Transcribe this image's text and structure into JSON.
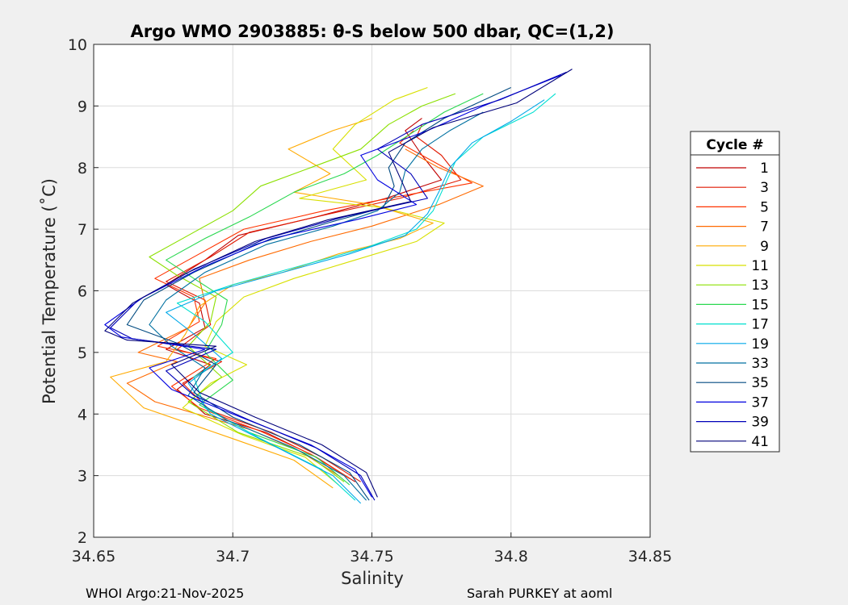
{
  "figure": {
    "background": "#f0f0f0",
    "footer_left": "WHOI Argo:21-Nov-2025",
    "footer_right": "Sarah PURKEY at aoml"
  },
  "chart_data": {
    "type": "line",
    "title": "Argo WMO 2903885: θ-S below 500 dbar,  QC=(1,2)",
    "xlabel": "Salinity",
    "ylabel": "Potential Temperature (˚C)",
    "xlim": [
      34.65,
      34.85
    ],
    "ylim": [
      2,
      10
    ],
    "xticks": [
      34.65,
      34.7,
      34.75,
      34.8,
      34.85
    ],
    "xtick_labels": [
      "34.65",
      "34.7",
      "34.75",
      "34.8",
      "34.85"
    ],
    "yticks": [
      2,
      3,
      4,
      5,
      6,
      7,
      8,
      9,
      10
    ],
    "ytick_labels": [
      "2",
      "3",
      "4",
      "5",
      "6",
      "7",
      "8",
      "9",
      "10"
    ],
    "grid": true,
    "legend": {
      "title": "Cycle #",
      "position": "right"
    },
    "series": [
      {
        "name": "1",
        "color": "#c00000",
        "points": [
          [
            34.744,
            2.9
          ],
          [
            34.73,
            3.3
          ],
          [
            34.712,
            3.7
          ],
          [
            34.69,
            4.0
          ],
          [
            34.68,
            4.4
          ],
          [
            34.692,
            4.8
          ],
          [
            34.676,
            5.05
          ],
          [
            34.69,
            5.4
          ],
          [
            34.688,
            5.8
          ],
          [
            34.676,
            6.1
          ],
          [
            34.69,
            6.5
          ],
          [
            34.702,
            6.9
          ],
          [
            34.73,
            7.2
          ],
          [
            34.755,
            7.5
          ],
          [
            34.775,
            7.8
          ],
          [
            34.768,
            8.2
          ],
          [
            34.762,
            8.6
          ],
          [
            34.768,
            8.8
          ]
        ]
      },
      {
        "name": "3",
        "color": "#e01800",
        "points": [
          [
            34.746,
            2.9
          ],
          [
            34.732,
            3.3
          ],
          [
            34.714,
            3.7
          ],
          [
            34.692,
            4.05
          ],
          [
            34.682,
            4.5
          ],
          [
            34.696,
            4.85
          ],
          [
            34.68,
            5.05
          ],
          [
            34.692,
            5.45
          ],
          [
            34.69,
            5.85
          ],
          [
            34.676,
            6.15
          ],
          [
            34.692,
            6.55
          ],
          [
            34.706,
            6.95
          ],
          [
            34.735,
            7.25
          ],
          [
            34.76,
            7.5
          ],
          [
            34.782,
            7.8
          ],
          [
            34.775,
            8.2
          ],
          [
            34.766,
            8.5
          ],
          [
            34.768,
            8.7
          ]
        ]
      },
      {
        "name": "5",
        "color": "#ff3300",
        "points": [
          [
            34.742,
            2.95
          ],
          [
            34.728,
            3.35
          ],
          [
            34.71,
            3.72
          ],
          [
            34.688,
            4.1
          ],
          [
            34.678,
            4.45
          ],
          [
            34.694,
            4.9
          ],
          [
            34.673,
            5.1
          ],
          [
            34.688,
            5.5
          ],
          [
            34.686,
            5.9
          ],
          [
            34.672,
            6.2
          ],
          [
            34.688,
            6.6
          ],
          [
            34.704,
            7.0
          ],
          [
            34.733,
            7.3
          ],
          [
            34.762,
            7.55
          ],
          [
            34.786,
            7.75
          ],
          [
            34.772,
            8.1
          ],
          [
            34.76,
            8.4
          ],
          [
            34.765,
            8.6
          ]
        ]
      },
      {
        "name": "7",
        "color": "#ff6a00",
        "points": [
          [
            34.738,
            3.0
          ],
          [
            34.724,
            3.4
          ],
          [
            34.706,
            3.75
          ],
          [
            34.672,
            4.2
          ],
          [
            34.662,
            4.5
          ],
          [
            34.68,
            4.85
          ],
          [
            34.666,
            5.0
          ],
          [
            34.684,
            5.4
          ],
          [
            34.69,
            5.8
          ],
          [
            34.688,
            6.2
          ],
          [
            34.706,
            6.5
          ],
          [
            34.728,
            6.8
          ],
          [
            34.75,
            7.05
          ],
          [
            34.774,
            7.4
          ],
          [
            34.79,
            7.7
          ],
          [
            34.774,
            8.0
          ],
          [
            34.762,
            8.3
          ]
        ]
      },
      {
        "name": "9",
        "color": "#ffaa00",
        "points": [
          [
            34.736,
            2.8
          ],
          [
            34.722,
            3.25
          ],
          [
            34.7,
            3.6
          ],
          [
            34.668,
            4.1
          ],
          [
            34.656,
            4.6
          ],
          [
            34.676,
            4.85
          ],
          [
            34.683,
            5.3
          ],
          [
            34.688,
            5.75
          ],
          [
            34.7,
            6.1
          ],
          [
            34.718,
            6.3
          ],
          [
            34.738,
            6.6
          ],
          [
            34.76,
            6.85
          ],
          [
            34.772,
            7.1
          ],
          [
            34.75,
            7.4
          ],
          [
            34.722,
            7.6
          ],
          [
            34.735,
            7.9
          ],
          [
            34.72,
            8.3
          ],
          [
            34.736,
            8.6
          ],
          [
            34.75,
            8.8
          ]
        ]
      },
      {
        "name": "11",
        "color": "#d8e000",
        "points": [
          [
            34.738,
            2.85
          ],
          [
            34.726,
            3.3
          ],
          [
            34.704,
            3.65
          ],
          [
            34.682,
            4.1
          ],
          [
            34.692,
            4.5
          ],
          [
            34.705,
            4.8
          ],
          [
            34.69,
            5.1
          ],
          [
            34.694,
            5.5
          ],
          [
            34.704,
            5.9
          ],
          [
            34.722,
            6.2
          ],
          [
            34.744,
            6.5
          ],
          [
            34.766,
            6.8
          ],
          [
            34.776,
            7.1
          ],
          [
            34.754,
            7.35
          ],
          [
            34.724,
            7.5
          ],
          [
            34.748,
            7.8
          ],
          [
            34.736,
            8.3
          ],
          [
            34.744,
            8.7
          ],
          [
            34.758,
            9.1
          ],
          [
            34.77,
            9.3
          ]
        ]
      },
      {
        "name": "13",
        "color": "#8be000",
        "points": [
          [
            34.74,
            2.9
          ],
          [
            34.728,
            3.3
          ],
          [
            34.702,
            3.7
          ],
          [
            34.684,
            4.2
          ],
          [
            34.696,
            4.6
          ],
          [
            34.684,
            5.1
          ],
          [
            34.692,
            5.5
          ],
          [
            34.694,
            5.9
          ],
          [
            34.68,
            6.25
          ],
          [
            34.67,
            6.55
          ],
          [
            34.684,
            6.9
          ],
          [
            34.7,
            7.3
          ],
          [
            34.71,
            7.7
          ],
          [
            34.728,
            8.0
          ],
          [
            34.746,
            8.3
          ],
          [
            34.756,
            8.7
          ],
          [
            34.768,
            9.0
          ],
          [
            34.78,
            9.2
          ]
        ]
      },
      {
        "name": "15",
        "color": "#2ad850",
        "points": [
          [
            34.742,
            2.85
          ],
          [
            34.73,
            3.3
          ],
          [
            34.706,
            3.7
          ],
          [
            34.688,
            4.15
          ],
          [
            34.7,
            4.55
          ],
          [
            34.69,
            5.0
          ],
          [
            34.696,
            5.45
          ],
          [
            34.698,
            5.85
          ],
          [
            34.686,
            6.2
          ],
          [
            34.676,
            6.5
          ],
          [
            34.69,
            6.85
          ],
          [
            34.706,
            7.2
          ],
          [
            34.722,
            7.6
          ],
          [
            34.74,
            7.9
          ],
          [
            34.752,
            8.2
          ],
          [
            34.764,
            8.55
          ],
          [
            34.776,
            8.9
          ],
          [
            34.79,
            9.2
          ]
        ]
      },
      {
        "name": "17",
        "color": "#00e0d0",
        "points": [
          [
            34.744,
            2.6
          ],
          [
            34.732,
            3.1
          ],
          [
            34.71,
            3.6
          ],
          [
            34.69,
            4.1
          ],
          [
            34.686,
            4.6
          ],
          [
            34.7,
            5.0
          ],
          [
            34.69,
            5.5
          ],
          [
            34.68,
            5.8
          ],
          [
            34.7,
            6.1
          ],
          [
            34.724,
            6.4
          ],
          [
            34.748,
            6.7
          ],
          [
            34.766,
            7.0
          ],
          [
            34.772,
            7.3
          ],
          [
            34.776,
            7.7
          ],
          [
            34.78,
            8.1
          ],
          [
            34.79,
            8.5
          ],
          [
            34.808,
            8.9
          ],
          [
            34.816,
            9.2
          ]
        ]
      },
      {
        "name": "19",
        "color": "#00a8e8",
        "points": [
          [
            34.746,
            2.55
          ],
          [
            34.736,
            3.0
          ],
          [
            34.714,
            3.5
          ],
          [
            34.692,
            4.0
          ],
          [
            34.684,
            4.5
          ],
          [
            34.696,
            4.9
          ],
          [
            34.686,
            5.3
          ],
          [
            34.676,
            5.65
          ],
          [
            34.694,
            6.0
          ],
          [
            34.718,
            6.3
          ],
          [
            34.742,
            6.6
          ],
          [
            34.762,
            6.9
          ],
          [
            34.77,
            7.25
          ],
          [
            34.774,
            7.6
          ],
          [
            34.778,
            8.0
          ],
          [
            34.786,
            8.4
          ],
          [
            34.8,
            8.75
          ],
          [
            34.812,
            9.1
          ]
        ]
      },
      {
        "name": "33",
        "color": "#0070a0",
        "points": [
          [
            34.748,
            2.6
          ],
          [
            34.74,
            3.0
          ],
          [
            34.722,
            3.45
          ],
          [
            34.698,
            3.9
          ],
          [
            34.684,
            4.3
          ],
          [
            34.69,
            4.75
          ],
          [
            34.678,
            5.1
          ],
          [
            34.67,
            5.45
          ],
          [
            34.676,
            5.85
          ],
          [
            34.69,
            6.3
          ],
          [
            34.712,
            6.75
          ],
          [
            34.736,
            7.05
          ],
          [
            34.752,
            7.3
          ],
          [
            34.76,
            7.6
          ],
          [
            34.762,
            7.95
          ],
          [
            34.768,
            8.3
          ],
          [
            34.778,
            8.6
          ],
          [
            34.79,
            8.9
          ]
        ]
      },
      {
        "name": "35",
        "color": "#004a80",
        "points": [
          [
            34.749,
            2.6
          ],
          [
            34.742,
            3.05
          ],
          [
            34.724,
            3.5
          ],
          [
            34.7,
            3.95
          ],
          [
            34.686,
            4.35
          ],
          [
            34.694,
            4.8
          ],
          [
            34.68,
            5.15
          ],
          [
            34.662,
            5.45
          ],
          [
            34.668,
            5.85
          ],
          [
            34.686,
            6.3
          ],
          [
            34.708,
            6.75
          ],
          [
            34.734,
            7.1
          ],
          [
            34.754,
            7.35
          ],
          [
            34.758,
            7.7
          ],
          [
            34.756,
            8.0
          ],
          [
            34.762,
            8.4
          ],
          [
            34.776,
            8.8
          ],
          [
            34.8,
            9.3
          ]
        ]
      },
      {
        "name": "37",
        "color": "#0000e0",
        "points": [
          [
            34.75,
            2.65
          ],
          [
            34.744,
            3.1
          ],
          [
            34.728,
            3.5
          ],
          [
            34.7,
            4.0
          ],
          [
            34.678,
            4.4
          ],
          [
            34.67,
            4.75
          ],
          [
            34.69,
            5.05
          ],
          [
            34.66,
            5.25
          ],
          [
            34.654,
            5.45
          ],
          [
            34.668,
            5.9
          ],
          [
            34.69,
            6.4
          ],
          [
            34.714,
            6.85
          ],
          [
            34.744,
            7.15
          ],
          [
            34.766,
            7.4
          ],
          [
            34.752,
            7.8
          ],
          [
            34.746,
            8.2
          ],
          [
            34.77,
            8.6
          ],
          [
            34.79,
            9.0
          ],
          [
            34.818,
            9.5
          ]
        ]
      },
      {
        "name": "39",
        "color": "#0000b8",
        "points": [
          [
            34.751,
            2.6
          ],
          [
            34.746,
            3.0
          ],
          [
            34.73,
            3.45
          ],
          [
            34.706,
            3.9
          ],
          [
            34.686,
            4.3
          ],
          [
            34.676,
            4.7
          ],
          [
            34.694,
            5.05
          ],
          [
            34.664,
            5.22
          ],
          [
            34.656,
            5.4
          ],
          [
            34.666,
            5.85
          ],
          [
            34.686,
            6.35
          ],
          [
            34.712,
            6.85
          ],
          [
            34.74,
            7.2
          ],
          [
            34.77,
            7.5
          ],
          [
            34.764,
            7.9
          ],
          [
            34.752,
            8.3
          ],
          [
            34.768,
            8.7
          ],
          [
            34.796,
            9.1
          ],
          [
            34.82,
            9.55
          ]
        ]
      },
      {
        "name": "41",
        "color": "#00007a",
        "points": [
          [
            34.752,
            2.65
          ],
          [
            34.748,
            3.05
          ],
          [
            34.732,
            3.5
          ],
          [
            34.708,
            3.95
          ],
          [
            34.688,
            4.35
          ],
          [
            34.678,
            4.8
          ],
          [
            34.694,
            5.1
          ],
          [
            34.662,
            5.2
          ],
          [
            34.654,
            5.35
          ],
          [
            34.664,
            5.8
          ],
          [
            34.684,
            6.3
          ],
          [
            34.708,
            6.8
          ],
          [
            34.734,
            7.15
          ],
          [
            34.764,
            7.45
          ],
          [
            34.76,
            7.85
          ],
          [
            34.756,
            8.25
          ],
          [
            34.772,
            8.65
          ],
          [
            34.802,
            9.05
          ],
          [
            34.822,
            9.6
          ]
        ]
      }
    ]
  }
}
